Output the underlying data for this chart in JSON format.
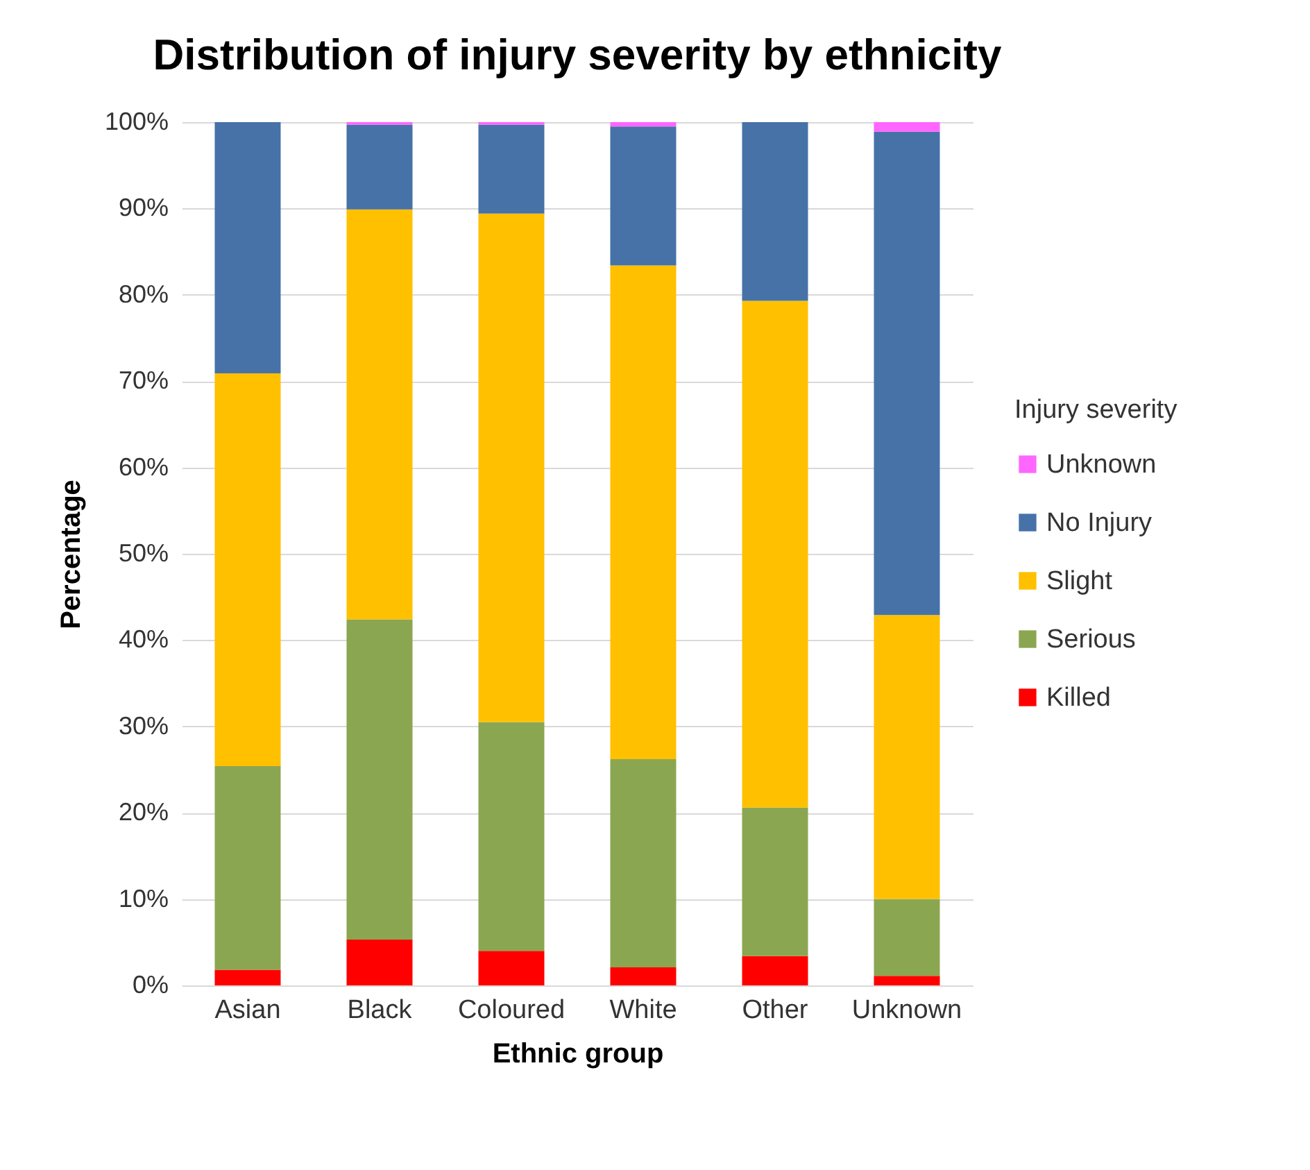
{
  "chart_data": {
    "type": "bar",
    "title": "Distribution of injury severity by ethnicity",
    "xlabel": "Ethnic group",
    "ylabel": "Percentage",
    "legend_title": "Injury severity",
    "categories": [
      "Asian",
      "Black",
      "Coloured",
      "White",
      "Other",
      "Unknown"
    ],
    "stacked": true,
    "grid": "y",
    "legend": "right",
    "ylim": [
      0,
      100
    ],
    "yticks": [
      {
        "value": 0,
        "label": "0%"
      },
      {
        "value": 10,
        "label": "10%"
      },
      {
        "value": 20,
        "label": "20%"
      },
      {
        "value": 30,
        "label": "30%"
      },
      {
        "value": 40,
        "label": "40%"
      },
      {
        "value": 50,
        "label": "50%"
      },
      {
        "value": 60,
        "label": "60%"
      },
      {
        "value": 70,
        "label": "70%"
      },
      {
        "value": 80,
        "label": "80%"
      },
      {
        "value": 90,
        "label": "90%"
      },
      {
        "value": 100,
        "label": "100%"
      }
    ],
    "series": [
      {
        "name": "Killed",
        "color": "#ff0000",
        "values": [
          1.8,
          5.3,
          4.0,
          2.1,
          3.4,
          1.1
        ]
      },
      {
        "name": "Serious",
        "color": "#8ba650",
        "values": [
          23.6,
          37.1,
          26.5,
          24.1,
          17.2,
          8.9
        ]
      },
      {
        "name": "Slight",
        "color": "#ffc000",
        "values": [
          45.5,
          47.5,
          58.9,
          57.2,
          58.7,
          32.9
        ]
      },
      {
        "name": "No Injury",
        "color": "#4672a8",
        "values": [
          29.1,
          9.8,
          10.3,
          16.1,
          20.7,
          56.0
        ]
      },
      {
        "name": "Unknown",
        "color": "#ff66ff",
        "values": [
          0,
          0.3,
          0.3,
          0.5,
          0,
          1.1
        ]
      }
    ]
  }
}
